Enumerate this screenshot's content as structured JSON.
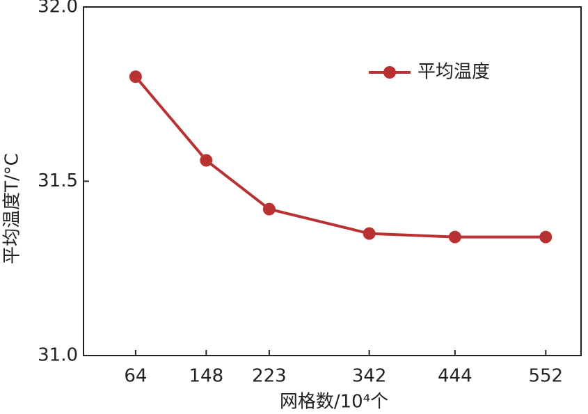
{
  "chart_data": {
    "type": "line",
    "x_label": "网格数/10⁴个",
    "y_label": "平均温度T/°C",
    "x": [
      64,
      148,
      223,
      342,
      444,
      552
    ],
    "series": [
      {
        "name": "平均温度",
        "color": "#b83232",
        "values": [
          31.8,
          31.56,
          31.42,
          31.35,
          31.34,
          31.34
        ]
      }
    ],
    "xlim": [
      2,
      594
    ],
    "xticks": [
      64,
      148,
      223,
      342,
      444,
      552
    ],
    "ylim": [
      31.0,
      32.0
    ],
    "yticks": [
      {
        "value": 31.0,
        "label": "31.0"
      },
      {
        "value": 31.5,
        "label": "31.5"
      },
      {
        "value": 32.0,
        "label": "32.0"
      }
    ],
    "legend": "upper right"
  }
}
